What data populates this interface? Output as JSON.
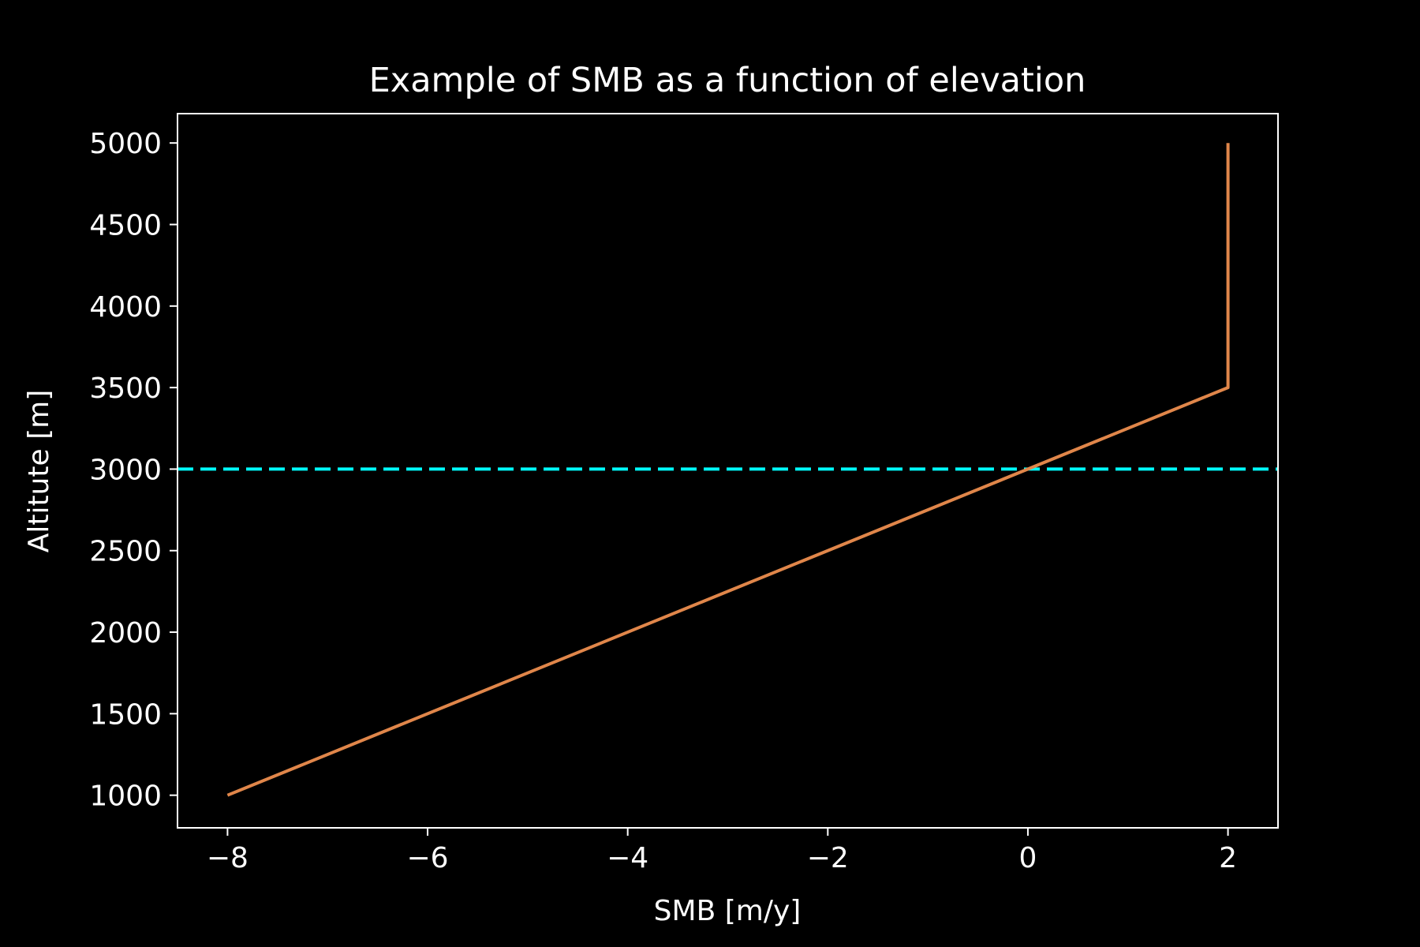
{
  "chart_data": {
    "type": "line",
    "title": "Example of SMB  as a function of elevation",
    "xlabel": "SMB [m/y]",
    "ylabel": "Altitute [m]",
    "xlim": [
      -8.5,
      2.5
    ],
    "ylim": [
      800,
      5180
    ],
    "xticks": [
      {
        "value": -8,
        "label": "−8"
      },
      {
        "value": -6,
        "label": "−6"
      },
      {
        "value": -4,
        "label": "−4"
      },
      {
        "value": -2,
        "label": "−2"
      },
      {
        "value": 0,
        "label": "0"
      },
      {
        "value": 2,
        "label": "2"
      }
    ],
    "yticks": [
      {
        "value": 1000,
        "label": "1000"
      },
      {
        "value": 1500,
        "label": "1500"
      },
      {
        "value": 2000,
        "label": "2000"
      },
      {
        "value": 2500,
        "label": "2500"
      },
      {
        "value": 3000,
        "label": "3000"
      },
      {
        "value": 3500,
        "label": "3500"
      },
      {
        "value": 4000,
        "label": "4000"
      },
      {
        "value": 4500,
        "label": "4500"
      },
      {
        "value": 5000,
        "label": "5000"
      }
    ],
    "grid": false,
    "background": "#000000",
    "foreground": "#ffffff",
    "series": [
      {
        "style": "solid",
        "color": "#e0864a",
        "points": [
          {
            "x": -8,
            "y": 1000
          },
          {
            "x": 0,
            "y": 3000
          },
          {
            "x": 2,
            "y": 3500
          },
          {
            "x": 2,
            "y": 5000
          }
        ]
      }
    ],
    "reference_lines": [
      {
        "orientation": "horizontal",
        "y": 3000,
        "style": "dashed",
        "color": "#00ffff"
      }
    ]
  }
}
